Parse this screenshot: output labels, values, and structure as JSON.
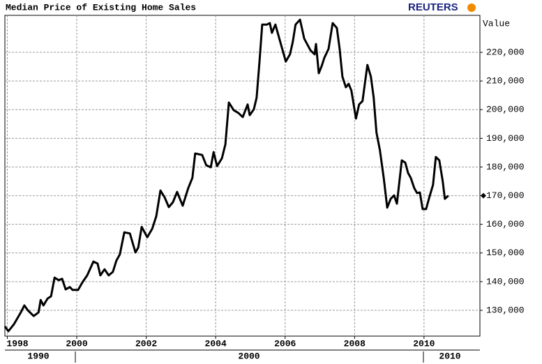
{
  "chart_data": {
    "type": "line",
    "title": "Median Price of Existing Home Sales",
    "source": "REUTERS",
    "y_label": "Value",
    "x_decades": [
      "1990",
      "2000",
      "2010"
    ],
    "xlim": [
      1997.93,
      2011.61
    ],
    "xticks": [
      1998,
      2000,
      2002,
      2004,
      2006,
      2008,
      2010
    ],
    "ylim": [
      121000,
      232900
    ],
    "yticks": [
      {
        "value": 130000,
        "label": "130,000"
      },
      {
        "value": 140000,
        "label": "140,000"
      },
      {
        "value": 150000,
        "label": "150,000"
      },
      {
        "value": 160000,
        "label": "160,000"
      },
      {
        "value": 170000,
        "label": "170,000"
      },
      {
        "value": 180000,
        "label": "180,000"
      },
      {
        "value": 190000,
        "label": "190,000"
      },
      {
        "value": 200000,
        "label": "200,000"
      },
      {
        "value": 210000,
        "label": "210,000"
      },
      {
        "value": 220000,
        "label": "220,000"
      }
    ],
    "grid": true,
    "x": [
      1997.93,
      1998.03,
      1998.19,
      1998.39,
      1998.49,
      1998.59,
      1998.76,
      1998.9,
      1998.96,
      1999.04,
      1999.16,
      1999.26,
      1999.36,
      1999.48,
      1999.58,
      1999.68,
      1999.8,
      1999.88,
      2000.04,
      2000.16,
      2000.3,
      2000.48,
      2000.6,
      2000.68,
      2000.8,
      2000.92,
      2001.04,
      2001.14,
      2001.24,
      2001.37,
      2001.53,
      2001.69,
      2001.77,
      2001.87,
      2002.03,
      2002.17,
      2002.29,
      2002.41,
      2002.53,
      2002.65,
      2002.77,
      2002.89,
      2003.05,
      2003.21,
      2003.33,
      2003.41,
      2003.61,
      2003.73,
      2003.86,
      2003.94,
      2004.04,
      2004.18,
      2004.28,
      2004.38,
      2004.52,
      2004.66,
      2004.78,
      2004.92,
      2004.98,
      2005.1,
      2005.18,
      2005.26,
      2005.34,
      2005.48,
      2005.56,
      2005.62,
      2005.72,
      2005.86,
      2006.02,
      2006.14,
      2006.22,
      2006.3,
      2006.43,
      2006.55,
      2006.73,
      2006.85,
      2006.89,
      2006.97,
      2007.05,
      2007.13,
      2007.25,
      2007.37,
      2007.49,
      2007.57,
      2007.65,
      2007.75,
      2007.83,
      2007.91,
      2008.04,
      2008.13,
      2008.23,
      2008.37,
      2008.47,
      2008.55,
      2008.63,
      2008.73,
      2008.84,
      2008.94,
      2009.04,
      2009.14,
      2009.22,
      2009.36,
      2009.46,
      2009.54,
      2009.62,
      2009.72,
      2009.8,
      2009.88,
      2009.96,
      2010.06,
      2010.16,
      2010.26,
      2010.34,
      2010.44,
      2010.54,
      2010.6,
      2010.7
    ],
    "series": [
      {
        "name": "Value",
        "color": "#000000",
        "values": [
          124400,
          122700,
          125100,
          129300,
          131700,
          130000,
          128000,
          129300,
          133600,
          131700,
          134100,
          134900,
          141400,
          140500,
          141000,
          137300,
          138100,
          137100,
          137100,
          139700,
          142200,
          147000,
          146300,
          142200,
          144300,
          142200,
          143400,
          147300,
          149500,
          157200,
          156800,
          150200,
          151900,
          159100,
          155500,
          158400,
          162800,
          171800,
          169400,
          166000,
          167700,
          171300,
          166500,
          172600,
          176200,
          184700,
          184200,
          180600,
          179900,
          185200,
          180300,
          183000,
          187900,
          202500,
          199800,
          198800,
          197400,
          201800,
          198100,
          200100,
          204200,
          216400,
          229700,
          229700,
          230200,
          226800,
          229700,
          223600,
          216800,
          219300,
          223600,
          229700,
          231400,
          224800,
          220700,
          219300,
          222900,
          212700,
          215100,
          218100,
          221200,
          230200,
          228500,
          221200,
          211500,
          207800,
          209000,
          206600,
          196900,
          201800,
          203000,
          215600,
          211500,
          204200,
          192000,
          185900,
          176200,
          165800,
          168900,
          170100,
          167200,
          182300,
          181500,
          177900,
          176200,
          172600,
          170900,
          171100,
          165300,
          165300,
          169700,
          173800,
          183500,
          182300,
          175000,
          168900,
          170000
        ]
      }
    ]
  }
}
